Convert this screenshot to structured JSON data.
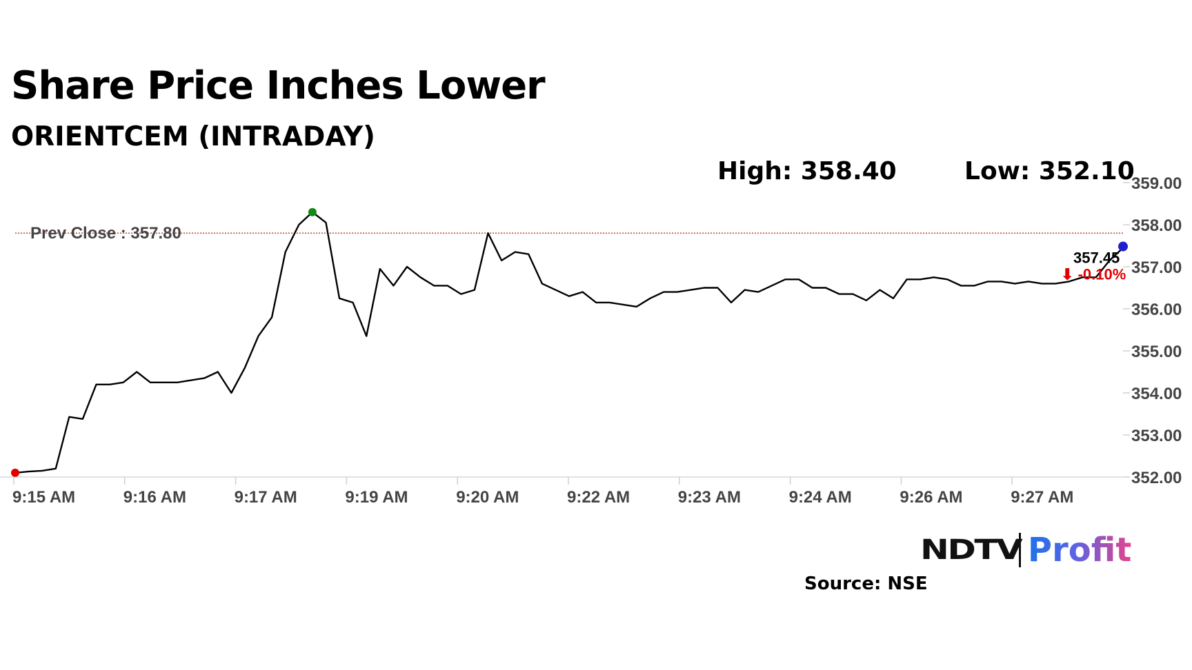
{
  "header": {
    "title": "Share Price Inches Lower",
    "subtitle": "ORIENTCEM (INTRADAY)"
  },
  "stats": {
    "high": "High: 358.40",
    "low": "Low: 352.10"
  },
  "footer": {
    "logo_ndtv": "NDTV",
    "logo_profit": "Profit",
    "source": "Source: NSE"
  },
  "colors": {
    "line": "#000000",
    "prev_close": "#b5322a",
    "low_marker": "#e00000",
    "high_marker": "#138a13",
    "last_marker": "#1f1fd0",
    "change_negative": "#e00000"
  },
  "chart_data": {
    "type": "line",
    "title": "Share Price Inches Lower",
    "subtitle": "ORIENTCEM (INTRADAY)",
    "xlabel": "",
    "ylabel": "",
    "ylim": [
      352.0,
      359.0
    ],
    "yticks": [
      "352.00",
      "353.00",
      "354.00",
      "355.00",
      "356.00",
      "357.00",
      "358.00",
      "359.00"
    ],
    "xticks": [
      "9:15 AM",
      "9:16 AM",
      "9:17 AM",
      "9:19 AM",
      "9:20 AM",
      "9:22 AM",
      "9:23 AM",
      "9:24 AM",
      "9:26 AM",
      "9:27 AM"
    ],
    "prev_close": {
      "label": "Prev Close : 357.80",
      "value": 357.8
    },
    "last": {
      "label": "357.45",
      "change": "⬇ -0.10%",
      "value": 357.45
    },
    "grid": false,
    "series": [
      {
        "values": [
          352.1,
          352.13,
          352.15,
          352.2,
          353.43,
          353.38,
          354.2,
          354.2,
          354.25,
          354.5,
          354.25,
          354.25,
          354.25,
          354.3,
          354.35,
          354.5,
          354.0,
          354.6,
          355.35,
          355.8,
          357.35,
          358.0,
          358.3,
          358.05,
          356.25,
          356.15,
          355.35,
          356.95,
          356.55,
          357.0,
          356.75,
          356.55,
          356.55,
          356.35,
          356.45,
          357.8,
          357.15,
          357.35,
          357.3,
          356.6,
          356.45,
          356.3,
          356.4,
          356.15,
          356.15,
          356.1,
          356.05,
          356.25,
          356.4,
          356.4,
          356.45,
          356.5,
          356.5,
          356.15,
          356.45,
          356.4,
          356.55,
          356.7,
          356.7,
          356.5,
          356.5,
          356.35,
          356.35,
          356.2,
          356.45,
          356.25,
          356.7,
          356.7,
          356.75,
          356.7,
          356.55,
          356.55,
          356.65,
          356.65,
          356.6,
          356.65,
          356.6,
          356.6,
          356.65,
          356.75,
          356.75,
          357.15,
          357.45
        ]
      }
    ]
  }
}
